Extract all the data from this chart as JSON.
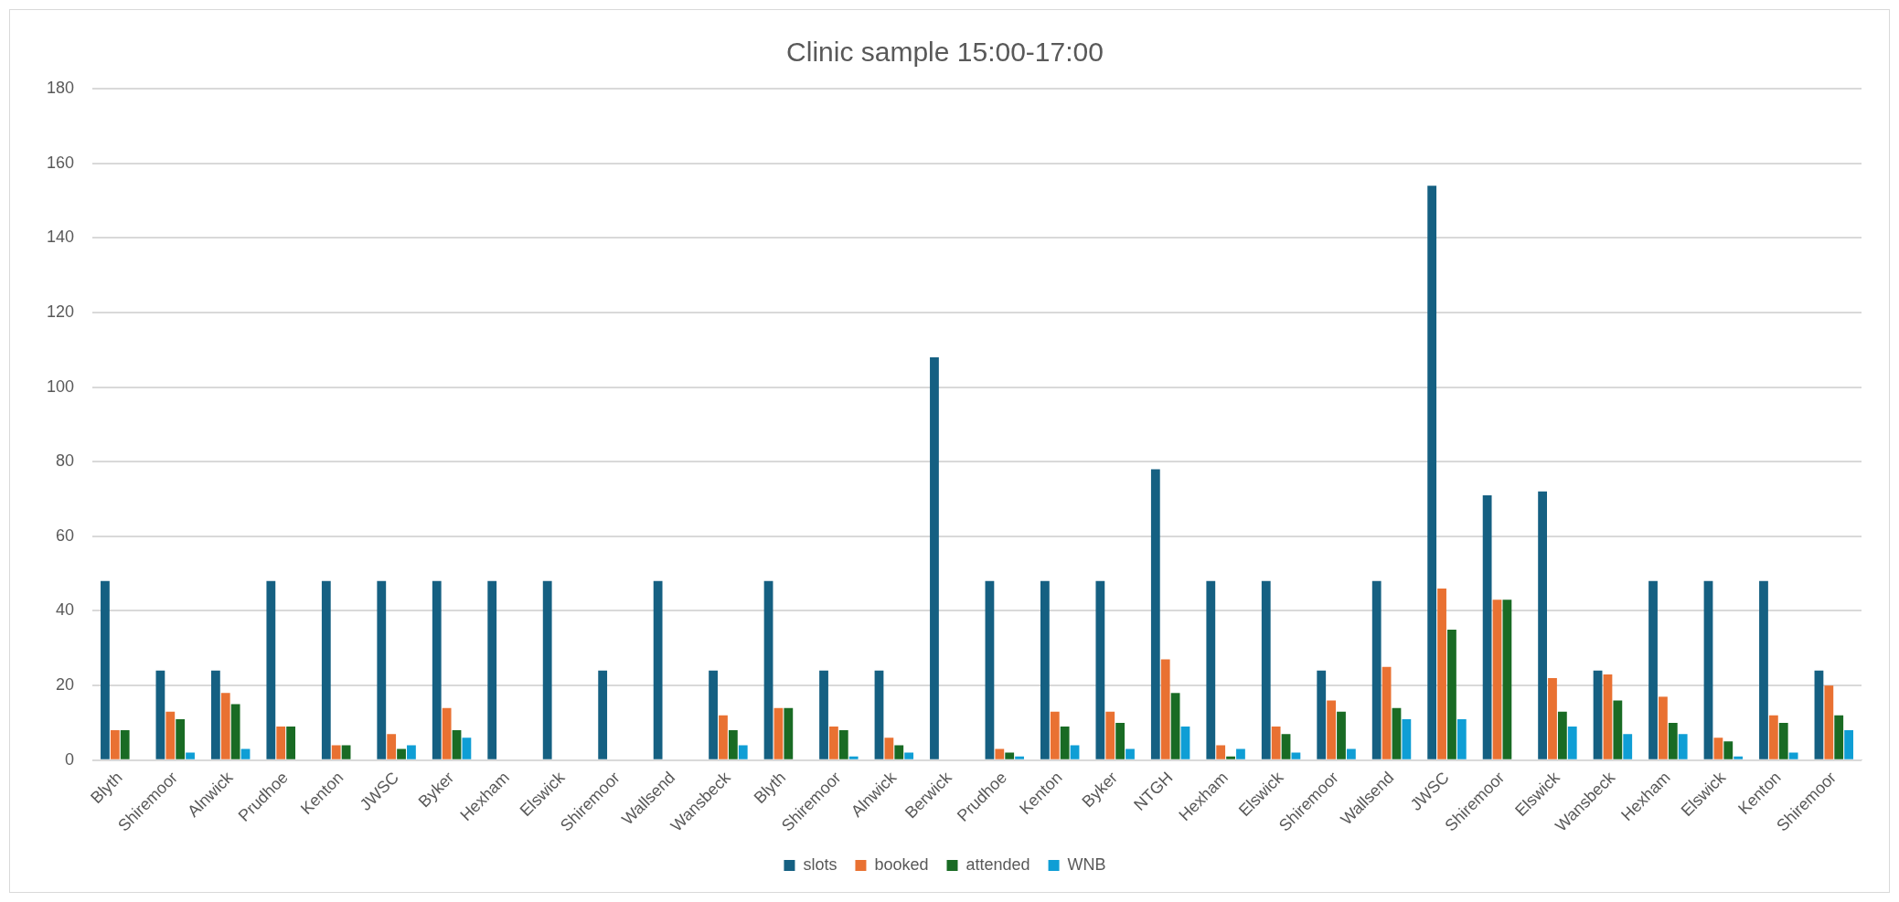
{
  "chart_data": {
    "type": "bar",
    "title": "Clinic sample 15:00-17:00",
    "categories": [
      "Blyth",
      "Shiremoor",
      "Alnwick",
      "Prudhoe",
      "Kenton",
      "JWSC",
      "Byker",
      "Hexham",
      "Elswick",
      "Shiremoor",
      "Wallsend",
      "Wansbeck",
      "Blyth",
      "Shiremoor",
      "Alnwick",
      "Berwick",
      "Prudhoe",
      "Kenton",
      "Byker",
      "NTGH",
      "Hexham",
      "Elswick",
      "Shiremoor",
      "Wallsend",
      "JWSC",
      "Shiremoor",
      "Elswick",
      "Wansbeck",
      "Hexham",
      "Elswick",
      "Kenton",
      "Shiremoor"
    ],
    "series": [
      {
        "name": "slots",
        "color": "#156082",
        "values": [
          48,
          24,
          24,
          48,
          48,
          48,
          48,
          48,
          48,
          24,
          48,
          24,
          48,
          24,
          24,
          108,
          48,
          48,
          48,
          78,
          48,
          48,
          24,
          48,
          154,
          71,
          72,
          24,
          48,
          48,
          48,
          24
        ]
      },
      {
        "name": "booked",
        "color": "#e97132",
        "values": [
          8,
          13,
          18,
          9,
          4,
          7,
          14,
          0,
          0,
          0,
          0,
          12,
          14,
          9,
          6,
          0,
          3,
          13,
          13,
          27,
          4,
          9,
          16,
          25,
          46,
          43,
          22,
          23,
          17,
          6,
          12,
          20
        ]
      },
      {
        "name": "attended",
        "color": "#196b24",
        "values": [
          8,
          11,
          15,
          9,
          4,
          3,
          8,
          0,
          0,
          0,
          0,
          8,
          14,
          8,
          4,
          0,
          2,
          9,
          10,
          18,
          1,
          7,
          13,
          14,
          35,
          43,
          13,
          16,
          10,
          5,
          10,
          12
        ]
      },
      {
        "name": "WNB",
        "color": "#0f9ed5",
        "values": [
          0,
          2,
          3,
          0,
          0,
          4,
          6,
          0,
          0,
          0,
          0,
          4,
          0,
          1,
          2,
          0,
          1,
          4,
          3,
          9,
          3,
          2,
          3,
          11,
          11,
          0,
          9,
          7,
          7,
          1,
          2,
          8
        ]
      }
    ],
    "ylim": [
      0,
      180
    ],
    "yticks": [
      0,
      20,
      40,
      60,
      80,
      100,
      120,
      140,
      160,
      180
    ],
    "grid": "y",
    "legend": "bottom"
  }
}
